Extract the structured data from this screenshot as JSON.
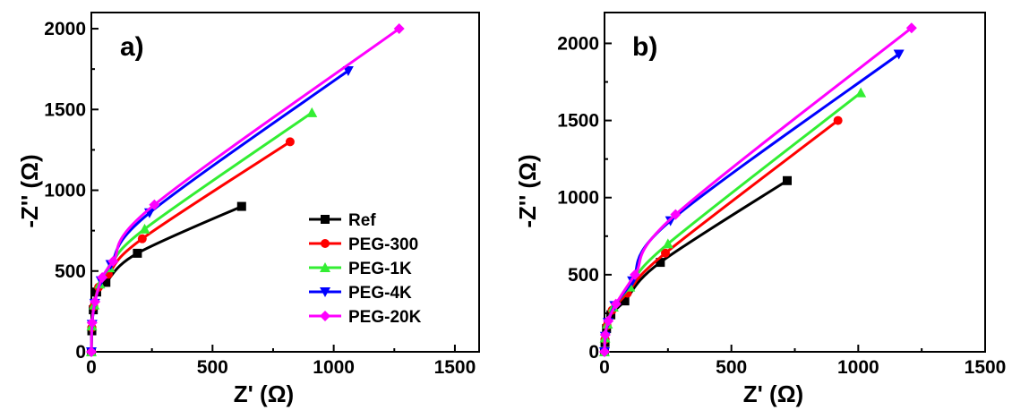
{
  "chart_data": [
    {
      "type": "line",
      "panel_label": "a)",
      "xlabel": "Z' (Ω)",
      "ylabel": "-Z'' (Ω)",
      "xlim": [
        0,
        1600
      ],
      "ylim": [
        0,
        2100
      ],
      "xticks": [
        "0",
        "500",
        "1000",
        "1500"
      ],
      "yticks": [
        "0",
        "500",
        "1000",
        "1500",
        "2000"
      ],
      "legend": "center-right",
      "series": [
        {
          "name": "Ref",
          "color": "#000000",
          "marker": "square",
          "x": [
            0,
            2,
            8,
            22,
            60,
            190,
            620
          ],
          "y": [
            0,
            130,
            260,
            370,
            430,
            610,
            900
          ]
        },
        {
          "name": "PEG-300",
          "color": "#ff0000",
          "marker": "circle",
          "x": [
            0,
            2,
            10,
            30,
            70,
            210,
            820
          ],
          "y": [
            0,
            150,
            280,
            400,
            480,
            700,
            1300
          ]
        },
        {
          "name": "PEG-1K",
          "color": "#33ee33",
          "marker": "triangle-up",
          "x": [
            0,
            2,
            12,
            35,
            75,
            220,
            910
          ],
          "y": [
            0,
            160,
            290,
            420,
            520,
            760,
            1480
          ]
        },
        {
          "name": "PEG-4K",
          "color": "#0000ff",
          "marker": "triangle-down",
          "x": [
            0,
            3,
            14,
            40,
            80,
            240,
            1060
          ],
          "y": [
            0,
            170,
            300,
            440,
            540,
            860,
            1740
          ]
        },
        {
          "name": "PEG-20K",
          "color": "#ff00ff",
          "marker": "diamond",
          "x": [
            0,
            3,
            15,
            45,
            90,
            260,
            1270
          ],
          "y": [
            0,
            180,
            310,
            460,
            560,
            910,
            2000
          ]
        }
      ]
    },
    {
      "type": "line",
      "panel_label": "b)",
      "xlabel": "Z' (Ω)",
      "ylabel": "-Z'' (Ω)",
      "xlim": [
        0,
        1500
      ],
      "ylim": [
        0,
        2200
      ],
      "xticks": [
        "0",
        "500",
        "1000",
        "1500"
      ],
      "yticks": [
        "0",
        "500",
        "1000",
        "1500",
        "2000"
      ],
      "series": [
        {
          "name": "Ref",
          "color": "#000000",
          "marker": "square",
          "x": [
            0,
            2,
            8,
            25,
            80,
            220,
            720
          ],
          "y": [
            0,
            60,
            150,
            240,
            330,
            580,
            1110
          ]
        },
        {
          "name": "PEG-300",
          "color": "#ff0000",
          "marker": "circle",
          "x": [
            0,
            2,
            10,
            30,
            90,
            240,
            920
          ],
          "y": [
            0,
            80,
            170,
            270,
            380,
            640,
            1500
          ]
        },
        {
          "name": "PEG-1K",
          "color": "#33ee33",
          "marker": "triangle-up",
          "x": [
            0,
            2,
            12,
            35,
            100,
            250,
            1010
          ],
          "y": [
            0,
            90,
            180,
            290,
            420,
            700,
            1680
          ]
        },
        {
          "name": "PEG-4K",
          "color": "#0000ff",
          "marker": "triangle-down",
          "x": [
            0,
            3,
            14,
            40,
            110,
            260,
            1160
          ],
          "y": [
            0,
            100,
            190,
            300,
            460,
            850,
            1930
          ]
        },
        {
          "name": "PEG-20K",
          "color": "#ff00ff",
          "marker": "diamond",
          "x": [
            0,
            3,
            15,
            45,
            120,
            280,
            1210
          ],
          "y": [
            0,
            110,
            200,
            310,
            500,
            890,
            2100
          ]
        }
      ]
    }
  ]
}
